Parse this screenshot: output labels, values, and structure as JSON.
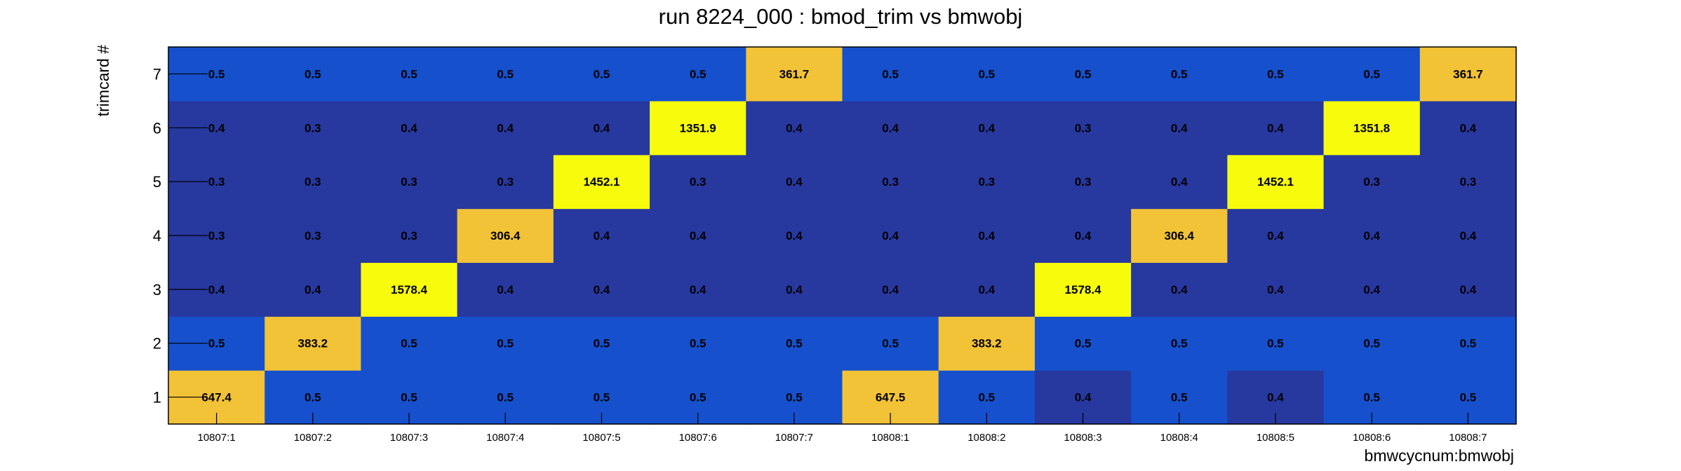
{
  "chart_data": {
    "type": "heatmap",
    "title": "run 8224_000 : bmod_trim vs bmwobj",
    "xlabel": "bmwcycnum:bmwobj",
    "ylabel": "trimcard #",
    "x_categories": [
      "10807:1",
      "10807:2",
      "10807:3",
      "10807:4",
      "10807:5",
      "10807:6",
      "10807:7",
      "10808:1",
      "10808:2",
      "10808:3",
      "10808:4",
      "10808:5",
      "10808:6",
      "10808:7"
    ],
    "y_categories": [
      "1",
      "2",
      "3",
      "4",
      "5",
      "6",
      "7"
    ],
    "values": [
      [
        "647.4",
        "0.5",
        "0.5",
        "0.5",
        "0.5",
        "0.5",
        "0.5",
        "647.5",
        "0.5",
        "0.4",
        "0.5",
        "0.4",
        "0.5",
        "0.5"
      ],
      [
        "0.5",
        "383.2",
        "0.5",
        "0.5",
        "0.5",
        "0.5",
        "0.5",
        "0.5",
        "383.2",
        "0.5",
        "0.5",
        "0.5",
        "0.5",
        "0.5"
      ],
      [
        "0.4",
        "0.4",
        "1578.4",
        "0.4",
        "0.4",
        "0.4",
        "0.4",
        "0.4",
        "0.4",
        "1578.4",
        "0.4",
        "0.4",
        "0.4",
        "0.4"
      ],
      [
        "0.3",
        "0.3",
        "0.3",
        "306.4",
        "0.4",
        "0.4",
        "0.4",
        "0.4",
        "0.4",
        "0.4",
        "306.4",
        "0.4",
        "0.4",
        "0.4"
      ],
      [
        "0.3",
        "0.3",
        "0.3",
        "0.3",
        "1452.1",
        "0.3",
        "0.4",
        "0.3",
        "0.3",
        "0.3",
        "0.4",
        "1452.1",
        "0.3",
        "0.3"
      ],
      [
        "0.4",
        "0.3",
        "0.4",
        "0.4",
        "0.4",
        "1351.9",
        "0.4",
        "0.4",
        "0.4",
        "0.3",
        "0.4",
        "0.4",
        "1351.8",
        "0.4"
      ],
      [
        "0.5",
        "0.5",
        "0.5",
        "0.5",
        "0.5",
        "0.5",
        "361.7",
        "0.5",
        "0.5",
        "0.5",
        "0.5",
        "0.5",
        "0.5",
        "361.7"
      ]
    ],
    "colors": {
      "lowest": "#27389f",
      "low": "#1650cc",
      "mid": "#f2c237",
      "high": "#f7fc0d",
      "background": "#ffffff"
    },
    "grid": false,
    "legend": "none"
  }
}
